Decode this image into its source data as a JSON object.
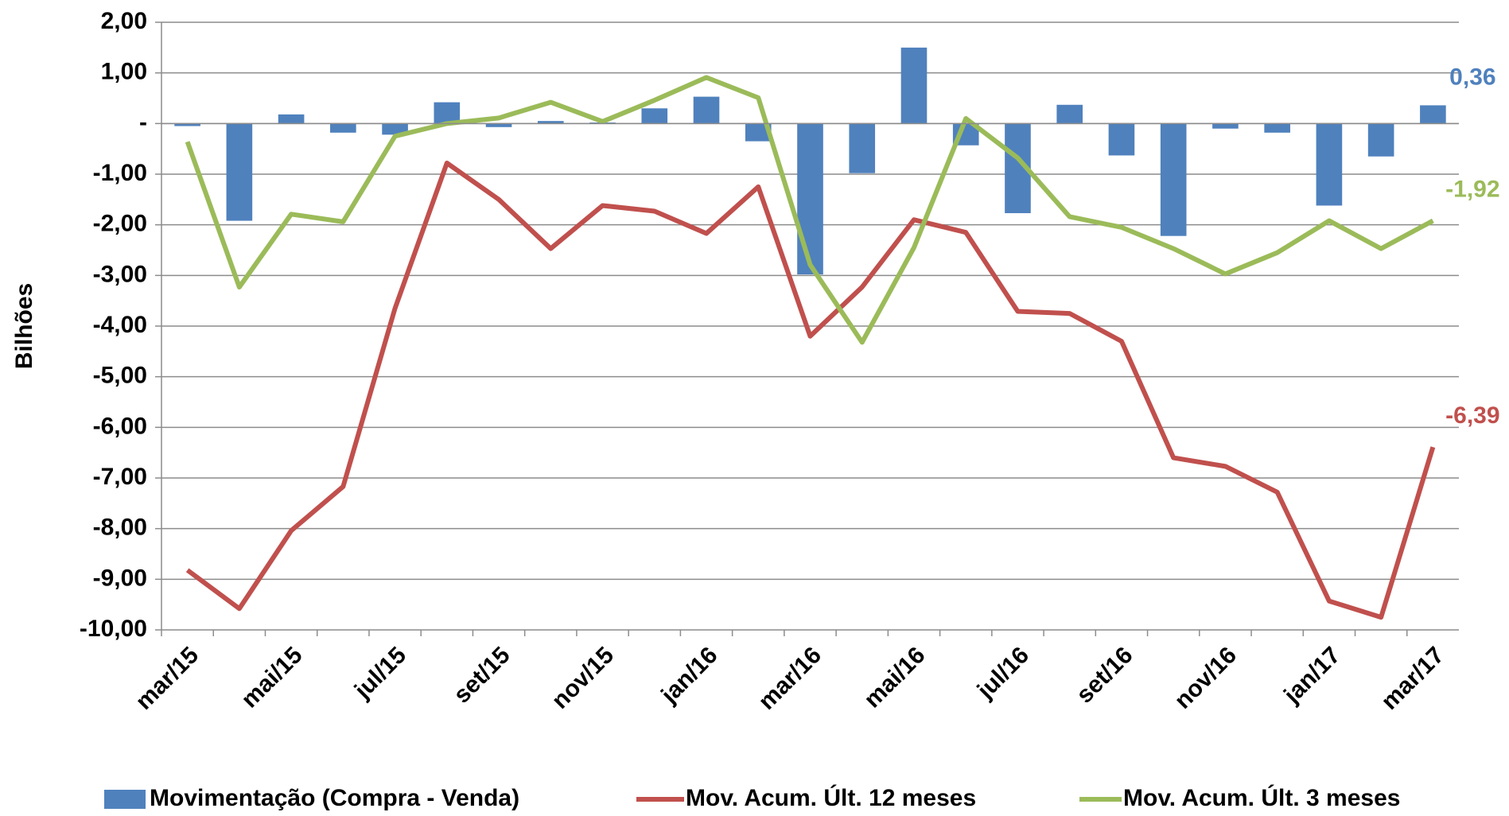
{
  "chart_data": {
    "type": "bar-line",
    "y_label": "Bilhões",
    "categories": [
      "mar/15",
      null,
      "mai/15",
      null,
      "jul/15",
      null,
      "set/15",
      null,
      "nov/15",
      null,
      "jan/16",
      null,
      "mar/16",
      null,
      "mai/16",
      null,
      "jul/16",
      null,
      "set/16",
      null,
      "nov/16",
      null,
      "jan/17",
      null,
      "mar/17"
    ],
    "series": [
      {
        "name": "Movimentação (Compra - Venda)",
        "type": "bar",
        "color": "#4f81bd",
        "values": [
          -0.05,
          -1.92,
          0.18,
          -0.18,
          -0.22,
          0.42,
          -0.07,
          0.05,
          0.02,
          0.3,
          0.53,
          -0.35,
          -2.98,
          -0.98,
          1.5,
          -0.43,
          -1.77,
          0.37,
          -0.63,
          -2.22,
          -0.1,
          -0.18,
          -1.62,
          -0.65,
          0.36
        ],
        "value_labels": [
          null,
          null,
          null,
          null,
          null,
          null,
          null,
          null,
          null,
          null,
          null,
          null,
          null,
          null,
          null,
          null,
          null,
          null,
          null,
          null,
          null,
          null,
          null,
          null,
          "0,36"
        ]
      },
      {
        "name": "Mov. Acum. Últ. 12 meses",
        "type": "line",
        "color": "#c0504d",
        "values": [
          -8.82,
          -9.58,
          -8.04,
          -7.17,
          -3.65,
          -0.78,
          -1.5,
          -2.47,
          -1.62,
          -1.73,
          -2.17,
          -1.25,
          -4.2,
          -3.23,
          -1.9,
          -2.15,
          -3.71,
          -3.75,
          -4.3,
          -6.6,
          -6.77,
          -7.28,
          -9.43,
          -9.75,
          -6.39
        ],
        "value_labels": [
          null,
          null,
          null,
          null,
          null,
          null,
          null,
          null,
          null,
          null,
          null,
          null,
          null,
          null,
          null,
          null,
          null,
          null,
          null,
          null,
          null,
          null,
          null,
          null,
          "-6,39"
        ]
      },
      {
        "name": "Mov. Acum. Últ. 3 meses",
        "type": "line",
        "color": "#9bbb59",
        "values": [
          -0.36,
          -3.23,
          -1.79,
          -1.94,
          -0.25,
          0.0,
          0.11,
          0.42,
          0.04,
          0.46,
          0.91,
          0.51,
          -2.79,
          -4.32,
          -2.45,
          0.1,
          -0.68,
          -1.84,
          -2.05,
          -2.47,
          -2.97,
          -2.55,
          -1.92,
          -2.47,
          -1.92
        ],
        "value_labels": [
          null,
          null,
          null,
          null,
          null,
          null,
          null,
          null,
          null,
          null,
          null,
          null,
          null,
          null,
          null,
          null,
          null,
          null,
          null,
          null,
          null,
          null,
          null,
          null,
          "-1,92"
        ]
      }
    ],
    "ylim": [
      -10,
      2
    ],
    "yticks": [
      {
        "value": 2,
        "label": "2,00"
      },
      {
        "value": 1,
        "label": "1,00"
      },
      {
        "value": 0,
        "label": "-"
      },
      {
        "value": -1,
        "label": "-1,00"
      },
      {
        "value": -2,
        "label": "-2,00"
      },
      {
        "value": -3,
        "label": "-3,00"
      },
      {
        "value": -4,
        "label": "-4,00"
      },
      {
        "value": -5,
        "label": "-5,00"
      },
      {
        "value": -6,
        "label": "-6,00"
      },
      {
        "value": -7,
        "label": "-7,00"
      },
      {
        "value": -8,
        "label": "-8,00"
      },
      {
        "value": -9,
        "label": "-9,00"
      },
      {
        "value": -10,
        "label": "-10,00"
      }
    ],
    "grid": true
  }
}
